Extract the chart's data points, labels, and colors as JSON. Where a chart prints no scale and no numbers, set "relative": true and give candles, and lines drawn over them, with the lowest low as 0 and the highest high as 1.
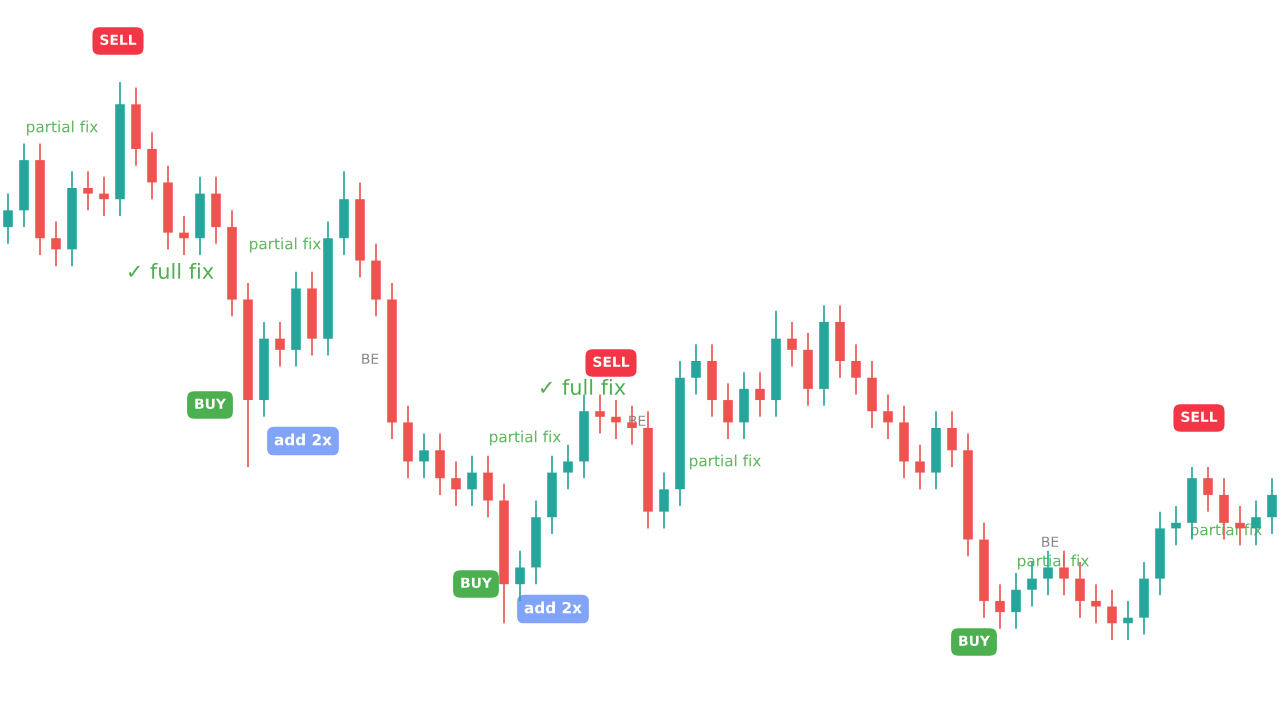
{
  "chart_data": {
    "type": "candlestick",
    "relative": true,
    "grid": false,
    "categories": [
      null,
      null,
      null,
      null,
      null,
      null,
      null,
      null,
      null,
      null,
      null,
      null,
      null,
      null,
      null,
      null,
      null,
      null,
      null,
      null,
      null,
      null,
      null,
      null,
      null,
      null,
      null,
      null,
      null,
      null,
      null,
      null,
      null,
      null,
      null,
      null,
      null,
      null,
      null,
      null,
      null,
      null,
      null,
      null,
      null,
      null,
      null,
      null,
      null,
      null,
      null,
      null,
      null,
      null,
      null,
      null,
      null,
      null,
      null,
      null,
      null,
      null,
      null,
      null,
      null,
      null,
      null,
      null,
      null,
      null,
      null,
      null,
      null,
      null,
      null,
      null,
      null,
      null,
      null,
      null
    ],
    "ohlc": [
      [
        0.74,
        0.8,
        0.71,
        0.77
      ],
      [
        0.77,
        0.89,
        0.74,
        0.86
      ],
      [
        0.86,
        0.89,
        0.69,
        0.72
      ],
      [
        0.72,
        0.75,
        0.67,
        0.7
      ],
      [
        0.7,
        0.84,
        0.67,
        0.81
      ],
      [
        0.81,
        0.84,
        0.77,
        0.8
      ],
      [
        0.8,
        0.83,
        0.76,
        0.79
      ],
      [
        0.79,
        1.0,
        0.76,
        0.96
      ],
      [
        0.96,
        0.99,
        0.85,
        0.88
      ],
      [
        0.88,
        0.91,
        0.79,
        0.82
      ],
      [
        0.82,
        0.85,
        0.7,
        0.73
      ],
      [
        0.73,
        0.76,
        0.69,
        0.72
      ],
      [
        0.72,
        0.83,
        0.69,
        0.8
      ],
      [
        0.8,
        0.83,
        0.71,
        0.74
      ],
      [
        0.74,
        0.77,
        0.58,
        0.61
      ],
      [
        0.61,
        0.64,
        0.31,
        0.43
      ],
      [
        0.43,
        0.57,
        0.4,
        0.54
      ],
      [
        0.54,
        0.57,
        0.49,
        0.52
      ],
      [
        0.52,
        0.66,
        0.49,
        0.63
      ],
      [
        0.63,
        0.66,
        0.51,
        0.54
      ],
      [
        0.54,
        0.75,
        0.51,
        0.72
      ],
      [
        0.72,
        0.84,
        0.69,
        0.79
      ],
      [
        0.79,
        0.82,
        0.65,
        0.68
      ],
      [
        0.68,
        0.71,
        0.58,
        0.61
      ],
      [
        0.61,
        0.64,
        0.36,
        0.39
      ],
      [
        0.39,
        0.42,
        0.29,
        0.32
      ],
      [
        0.32,
        0.37,
        0.29,
        0.34
      ],
      [
        0.34,
        0.37,
        0.26,
        0.29
      ],
      [
        0.29,
        0.32,
        0.24,
        0.27
      ],
      [
        0.27,
        0.33,
        0.24,
        0.3
      ],
      [
        0.3,
        0.33,
        0.22,
        0.25
      ],
      [
        0.25,
        0.28,
        0.03,
        0.1
      ],
      [
        0.1,
        0.16,
        0.07,
        0.13
      ],
      [
        0.13,
        0.25,
        0.1,
        0.22
      ],
      [
        0.22,
        0.33,
        0.19,
        0.3
      ],
      [
        0.3,
        0.35,
        0.27,
        0.32
      ],
      [
        0.32,
        0.44,
        0.29,
        0.41
      ],
      [
        0.41,
        0.44,
        0.37,
        0.4
      ],
      [
        0.4,
        0.43,
        0.36,
        0.39
      ],
      [
        0.39,
        0.42,
        0.35,
        0.38
      ],
      [
        0.38,
        0.41,
        0.2,
        0.23
      ],
      [
        0.23,
        0.3,
        0.2,
        0.27
      ],
      [
        0.27,
        0.5,
        0.24,
        0.47
      ],
      [
        0.47,
        0.53,
        0.44,
        0.5
      ],
      [
        0.5,
        0.53,
        0.4,
        0.43
      ],
      [
        0.43,
        0.46,
        0.36,
        0.39
      ],
      [
        0.39,
        0.48,
        0.36,
        0.45
      ],
      [
        0.45,
        0.48,
        0.4,
        0.43
      ],
      [
        0.43,
        0.59,
        0.4,
        0.54
      ],
      [
        0.54,
        0.57,
        0.49,
        0.52
      ],
      [
        0.52,
        0.55,
        0.42,
        0.45
      ],
      [
        0.45,
        0.6,
        0.42,
        0.57
      ],
      [
        0.57,
        0.6,
        0.47,
        0.5
      ],
      [
        0.5,
        0.53,
        0.44,
        0.47
      ],
      [
        0.47,
        0.5,
        0.38,
        0.41
      ],
      [
        0.41,
        0.44,
        0.36,
        0.39
      ],
      [
        0.39,
        0.42,
        0.29,
        0.32
      ],
      [
        0.32,
        0.35,
        0.27,
        0.3
      ],
      [
        0.3,
        0.41,
        0.27,
        0.38
      ],
      [
        0.38,
        0.41,
        0.31,
        0.34
      ],
      [
        0.34,
        0.37,
        0.15,
        0.18
      ],
      [
        0.18,
        0.21,
        0.04,
        0.07
      ],
      [
        0.07,
        0.1,
        0.02,
        0.05
      ],
      [
        0.05,
        0.12,
        0.02,
        0.09
      ],
      [
        0.09,
        0.14,
        0.06,
        0.11
      ],
      [
        0.11,
        0.16,
        0.08,
        0.13
      ],
      [
        0.13,
        0.16,
        0.08,
        0.11
      ],
      [
        0.11,
        0.14,
        0.04,
        0.07
      ],
      [
        0.07,
        0.1,
        0.03,
        0.06
      ],
      [
        0.06,
        0.09,
        0.0,
        0.03
      ],
      [
        0.03,
        0.07,
        0.0,
        0.04
      ],
      [
        0.04,
        0.14,
        0.01,
        0.11
      ],
      [
        0.11,
        0.23,
        0.08,
        0.2
      ],
      [
        0.2,
        0.24,
        0.17,
        0.21
      ],
      [
        0.21,
        0.31,
        0.18,
        0.29
      ],
      [
        0.29,
        0.31,
        0.23,
        0.26
      ],
      [
        0.26,
        0.29,
        0.18,
        0.21
      ],
      [
        0.21,
        0.24,
        0.17,
        0.2
      ],
      [
        0.2,
        0.25,
        0.17,
        0.22
      ],
      [
        0.22,
        0.29,
        0.19,
        0.26
      ]
    ],
    "colors": [
      "#26a69a",
      "#26a69a",
      "#ef5350",
      "#ef5350",
      "#26a69a",
      "#ef5350",
      "#ef5350",
      "#26a69a",
      "#ef5350",
      "#ef5350",
      "#ef5350",
      "#ef5350",
      "#26a69a",
      "#ef5350",
      "#ef5350",
      "#ef5350",
      "#26a69a",
      "#ef5350",
      "#26a69a",
      "#ef5350",
      "#26a69a",
      "#26a69a",
      "#ef5350",
      "#ef5350",
      "#ef5350",
      "#ef5350",
      "#26a69a",
      "#ef5350",
      "#ef5350",
      "#26a69a",
      "#ef5350",
      "#ef5350",
      "#26a69a",
      "#26a69a",
      "#26a69a",
      "#26a69a",
      "#26a69a",
      "#ef5350",
      "#ef5350",
      "#ef5350",
      "#ef5350",
      "#26a69a",
      "#26a69a",
      "#26a69a",
      "#ef5350",
      "#ef5350",
      "#26a69a",
      "#ef5350",
      "#26a69a",
      "#ef5350",
      "#ef5350",
      "#26a69a",
      "#ef5350",
      "#ef5350",
      "#ef5350",
      "#ef5350",
      "#ef5350",
      "#ef5350",
      "#26a69a",
      "#ef5350",
      "#ef5350",
      "#ef5350",
      "#ef5350",
      "#26a69a",
      "#26a69a",
      "#26a69a",
      "#ef5350",
      "#ef5350",
      "#ef5350",
      "#ef5350",
      "#26a69a",
      "#26a69a",
      "#26a69a",
      "#26a69a",
      "#26a69a",
      "#ef5350",
      "#ef5350",
      "#ef5350",
      "#26a69a",
      "#26a69a"
    ],
    "annotations": [
      "SELL",
      "partial fix",
      "✓ full fix",
      "partial fix",
      "BUY",
      "add 2x",
      "BE",
      "SELL",
      "✓ full fix",
      "BE",
      "partial fix",
      "partial fix",
      "BUY",
      "add 2x",
      "partial fix",
      "BE",
      "BUY",
      "SELL",
      "partial fix"
    ]
  }
}
